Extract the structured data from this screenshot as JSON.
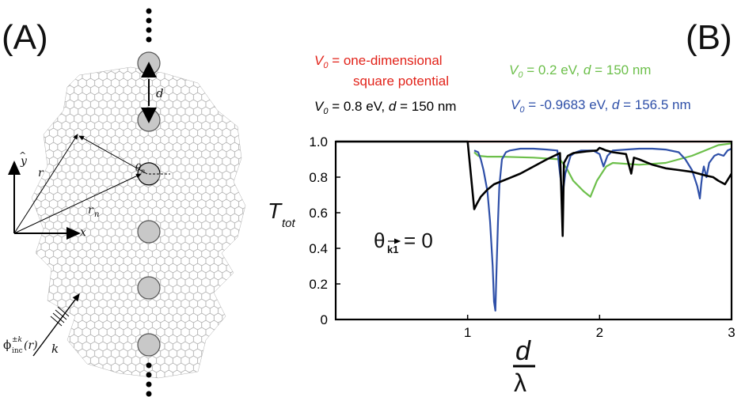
{
  "panel_a": {
    "label": "(A)",
    "d_label": "d",
    "theta_label": "θ",
    "theta_sub": "n",
    "r_label": "r",
    "r_n_label": "r",
    "r_n_sub": "n",
    "y_label": "y",
    "x_label": "x",
    "incident_label": "ϕ",
    "incident_sup": "±k",
    "incident_sub": "inc",
    "incident_arg": "(r)",
    "k_label": "k"
  },
  "panel_b": {
    "label": "(B)",
    "legend": {
      "red_v": "V",
      "red_sub": "0",
      "red_text": " = one-dimensional",
      "red_text2": "square potential",
      "green_v": "V",
      "green_sub": "0",
      "green_text": " = 0.2 eV, ",
      "green_d": "d",
      "green_text2": " = 150 nm",
      "black_v": "V",
      "black_sub": "0",
      "black_text": " = 0.8 eV, ",
      "black_d": "d",
      "black_text2": " = 150 nm",
      "blue_v": "V",
      "blue_sub": "0",
      "blue_text": " = -0.9683 eV, ",
      "blue_d": "d",
      "blue_text2": " = 156.5 nm"
    },
    "annotation_theta": "θ",
    "annotation_sub": "k1",
    "annotation_value": " = 0",
    "ylabel_main": "T",
    "ylabel_sub": "tot",
    "xlabel_num": "d",
    "xlabel_den": "λ"
  },
  "colors": {
    "red": "#e2231a",
    "green": "#6cbf4a",
    "black": "#000000",
    "blue": "#2e4fa8",
    "disc": "#c8c8c8"
  },
  "chart_data": {
    "type": "line",
    "xlim": [
      0,
      3
    ],
    "ylim": [
      0,
      1
    ],
    "xticks": [
      "1",
      "2",
      "3"
    ],
    "yticks": [
      "0",
      "0.2",
      "0.4",
      "0.6",
      "0.8",
      "1.0"
    ],
    "series": [
      {
        "color": "red",
        "x": [
          1.0,
          1.5,
          2.0,
          2.5,
          3.0
        ],
        "y": [
          1.0,
          1.0,
          1.0,
          1.0,
          1.0
        ]
      },
      {
        "color": "green",
        "x": [
          1.05,
          1.08,
          1.15,
          1.25,
          1.5,
          1.7,
          1.75,
          1.8,
          1.88,
          1.93,
          1.98,
          2.05,
          2.1,
          2.3,
          2.5,
          2.7,
          2.9,
          3.0
        ],
        "y": [
          0.94,
          0.92,
          0.915,
          0.915,
          0.91,
          0.9,
          0.85,
          0.78,
          0.72,
          0.69,
          0.78,
          0.86,
          0.88,
          0.87,
          0.88,
          0.92,
          0.98,
          0.99
        ]
      },
      {
        "color": "blue",
        "x": [
          1.05,
          1.08,
          1.1,
          1.12,
          1.15,
          1.17,
          1.19,
          1.2,
          1.21,
          1.22,
          1.23,
          1.24,
          1.26,
          1.29,
          1.32,
          1.4,
          1.5,
          1.6,
          1.68,
          1.7,
          1.72,
          1.74,
          1.78,
          1.82,
          1.86,
          1.9,
          1.95,
          2.0,
          2.03,
          2.06,
          2.1,
          2.2,
          2.3,
          2.4,
          2.5,
          2.6,
          2.65,
          2.7,
          2.74,
          2.76,
          2.77,
          2.78,
          2.79,
          2.81,
          2.83,
          2.87,
          2.9,
          2.94,
          2.97,
          3.0
        ],
        "y": [
          0.95,
          0.94,
          0.9,
          0.84,
          0.72,
          0.55,
          0.3,
          0.1,
          0.05,
          0.3,
          0.55,
          0.75,
          0.9,
          0.94,
          0.95,
          0.96,
          0.96,
          0.955,
          0.95,
          0.82,
          0.7,
          0.82,
          0.92,
          0.94,
          0.95,
          0.95,
          0.95,
          0.93,
          0.86,
          0.92,
          0.95,
          0.955,
          0.96,
          0.96,
          0.955,
          0.94,
          0.9,
          0.84,
          0.75,
          0.68,
          0.76,
          0.82,
          0.86,
          0.8,
          0.88,
          0.92,
          0.93,
          0.92,
          0.95,
          0.96
        ]
      },
      {
        "color": "black",
        "x": [
          0.0,
          1.0,
          1.05,
          1.07,
          1.1,
          1.15,
          1.2,
          1.3,
          1.4,
          1.5,
          1.6,
          1.7,
          1.71,
          1.72,
          1.73,
          1.76,
          1.8,
          1.9,
          1.98,
          2.0,
          2.05,
          2.1,
          2.2,
          2.24,
          2.26,
          2.3,
          2.4,
          2.5,
          2.6,
          2.7,
          2.8,
          2.86,
          2.9,
          2.95,
          3.0
        ],
        "y": [
          1.0,
          1.0,
          0.62,
          0.65,
          0.69,
          0.73,
          0.76,
          0.79,
          0.82,
          0.86,
          0.9,
          0.935,
          0.72,
          0.47,
          0.88,
          0.92,
          0.935,
          0.945,
          0.95,
          0.965,
          0.95,
          0.94,
          0.93,
          0.82,
          0.91,
          0.9,
          0.87,
          0.85,
          0.84,
          0.83,
          0.81,
          0.8,
          0.78,
          0.76,
          0.82
        ]
      }
    ]
  }
}
